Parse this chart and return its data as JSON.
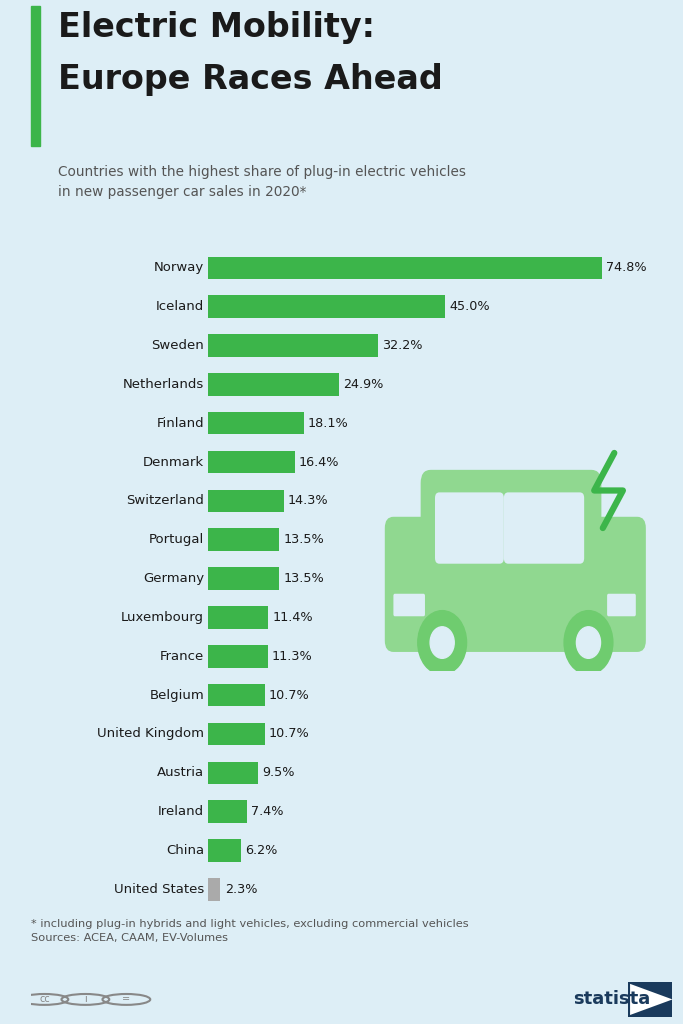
{
  "title_line1": "Electric Mobility:",
  "title_line2": "Europe Races Ahead",
  "subtitle": "Countries with the highest share of plug-in electric vehicles\nin new passenger car sales in 2020*",
  "footnote": "* including plug-in hybrids and light vehicles, excluding commercial vehicles\nSources: ACEA, CAAM, EV-Volumes",
  "countries": [
    "Norway",
    "Iceland",
    "Sweden",
    "Netherlands",
    "Finland",
    "Denmark",
    "Switzerland",
    "Portugal",
    "Germany",
    "Luxembourg",
    "France",
    "Belgium",
    "United Kingdom",
    "Austria",
    "Ireland",
    "China",
    "United States"
  ],
  "values": [
    74.8,
    45.0,
    32.2,
    24.9,
    18.1,
    16.4,
    14.3,
    13.5,
    13.5,
    11.4,
    11.3,
    10.7,
    10.7,
    9.5,
    7.4,
    6.2,
    2.3
  ],
  "bar_colors": [
    "#3cb54a",
    "#3cb54a",
    "#3cb54a",
    "#3cb54a",
    "#3cb54a",
    "#3cb54a",
    "#3cb54a",
    "#3cb54a",
    "#3cb54a",
    "#3cb54a",
    "#3cb54a",
    "#3cb54a",
    "#3cb54a",
    "#3cb54a",
    "#3cb54a",
    "#3cb54a",
    "#aaaaaa"
  ],
  "bg_color": "#ddeef6",
  "title_color": "#1a1a1a",
  "subtitle_color": "#555555",
  "bar_label_color": "#1a1a1a",
  "accent_color": "#3cb54a",
  "car_color": "#90d890",
  "xlim": [
    0,
    85
  ]
}
